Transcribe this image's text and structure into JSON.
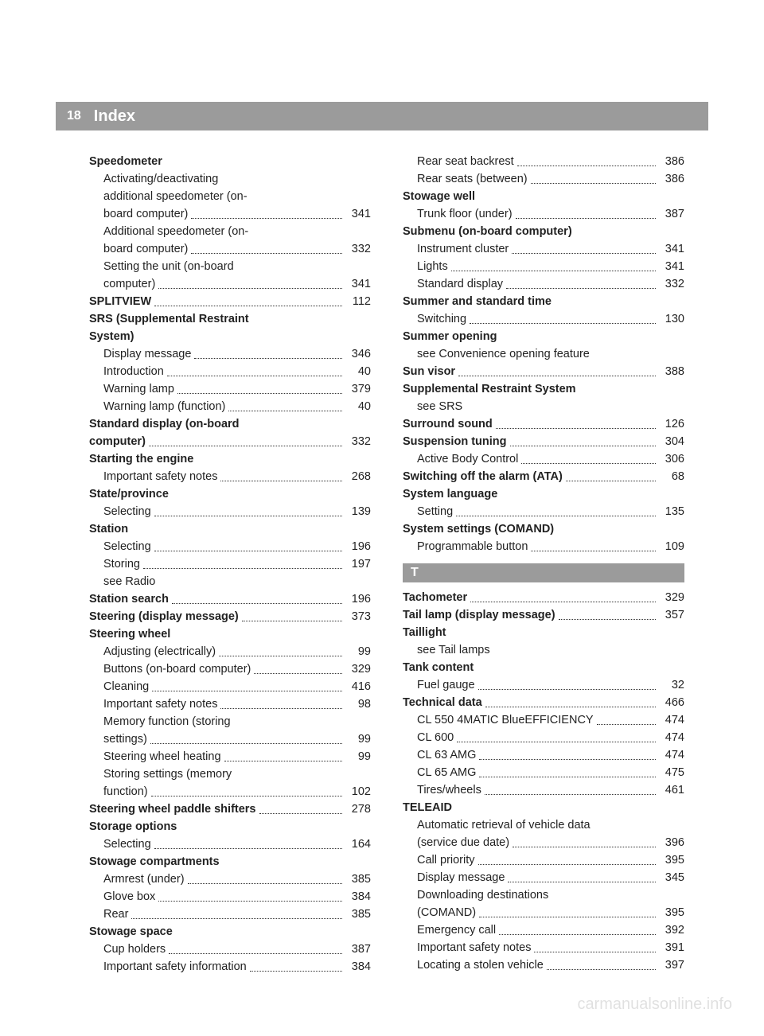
{
  "header": {
    "page_number": "18",
    "title": "Index",
    "bar_bg": "#9b9b9b",
    "text_color": "#ffffff"
  },
  "watermark": "carmanualsonline.info",
  "left_column": [
    {
      "type": "heading",
      "text": "Speedometer"
    },
    {
      "type": "sub-wrap-start",
      "text": "Activating/deactivating"
    },
    {
      "type": "sub-wrap-start",
      "text": "additional speedometer (on-"
    },
    {
      "type": "sub",
      "text": "board computer)",
      "page": "341"
    },
    {
      "type": "sub-wrap-start",
      "text": "Additional speedometer (on-"
    },
    {
      "type": "sub",
      "text": "board computer)",
      "page": "332"
    },
    {
      "type": "sub-wrap-start",
      "text": "Setting the unit (on-board"
    },
    {
      "type": "sub",
      "text": "computer)",
      "page": "341"
    },
    {
      "type": "entry-bold",
      "text": "SPLITVIEW",
      "page": "112"
    },
    {
      "type": "heading",
      "text": "SRS (Supplemental Restraint"
    },
    {
      "type": "heading",
      "text": "System)"
    },
    {
      "type": "sub",
      "text": "Display message",
      "page": "346"
    },
    {
      "type": "sub",
      "text": "Introduction",
      "page": "40"
    },
    {
      "type": "sub",
      "text": "Warning lamp",
      "page": "379"
    },
    {
      "type": "sub",
      "text": "Warning lamp (function)",
      "page": "40"
    },
    {
      "type": "heading",
      "text": "Standard display (on-board"
    },
    {
      "type": "entry-bold",
      "text": "computer)",
      "page": "332"
    },
    {
      "type": "heading",
      "text": "Starting the engine"
    },
    {
      "type": "sub",
      "text": "Important safety notes",
      "page": "268"
    },
    {
      "type": "heading",
      "text": "State/province"
    },
    {
      "type": "sub",
      "text": "Selecting",
      "page": "139"
    },
    {
      "type": "heading",
      "text": "Station"
    },
    {
      "type": "sub",
      "text": "Selecting",
      "page": "196"
    },
    {
      "type": "sub",
      "text": "Storing",
      "page": "197"
    },
    {
      "type": "see",
      "text": "see Radio"
    },
    {
      "type": "entry-bold",
      "text": "Station search",
      "page": "196"
    },
    {
      "type": "entry-bold",
      "text": "Steering (display message)",
      "page": "373"
    },
    {
      "type": "heading",
      "text": "Steering wheel"
    },
    {
      "type": "sub",
      "text": "Adjusting (electrically)",
      "page": "99"
    },
    {
      "type": "sub",
      "text": "Buttons (on-board computer)",
      "page": "329"
    },
    {
      "type": "sub",
      "text": "Cleaning",
      "page": "416"
    },
    {
      "type": "sub",
      "text": "Important safety notes",
      "page": "98"
    },
    {
      "type": "sub-wrap-start",
      "text": "Memory function (storing"
    },
    {
      "type": "sub",
      "text": "settings)",
      "page": "99"
    },
    {
      "type": "sub",
      "text": "Steering wheel heating",
      "page": "99"
    },
    {
      "type": "sub-wrap-start",
      "text": "Storing settings (memory"
    },
    {
      "type": "sub",
      "text": "function)",
      "page": "102"
    },
    {
      "type": "entry-bold",
      "text": "Steering wheel paddle shifters",
      "page": "278"
    },
    {
      "type": "heading",
      "text": "Storage options"
    },
    {
      "type": "sub",
      "text": "Selecting",
      "page": "164"
    },
    {
      "type": "heading",
      "text": "Stowage compartments"
    },
    {
      "type": "sub",
      "text": "Armrest (under)",
      "page": "385"
    },
    {
      "type": "sub",
      "text": "Glove box",
      "page": "384"
    },
    {
      "type": "sub",
      "text": "Rear",
      "page": "385"
    },
    {
      "type": "heading",
      "text": "Stowage space"
    },
    {
      "type": "sub",
      "text": "Cup holders",
      "page": "387"
    },
    {
      "type": "sub",
      "text": "Important safety information",
      "page": "384"
    }
  ],
  "right_column": [
    {
      "type": "sub",
      "text": "Rear seat backrest",
      "page": "386"
    },
    {
      "type": "sub",
      "text": "Rear seats (between)",
      "page": "386"
    },
    {
      "type": "heading",
      "text": "Stowage well"
    },
    {
      "type": "sub",
      "text": "Trunk floor (under)",
      "page": "387"
    },
    {
      "type": "heading",
      "text": "Submenu (on-board computer)"
    },
    {
      "type": "sub",
      "text": "Instrument cluster",
      "page": "341"
    },
    {
      "type": "sub",
      "text": "Lights",
      "page": "341"
    },
    {
      "type": "sub",
      "text": "Standard display",
      "page": "332"
    },
    {
      "type": "heading",
      "text": "Summer and standard time"
    },
    {
      "type": "sub",
      "text": "Switching",
      "page": "130"
    },
    {
      "type": "heading",
      "text": "Summer opening"
    },
    {
      "type": "see",
      "text": "see Convenience opening feature"
    },
    {
      "type": "entry-bold",
      "text": "Sun visor",
      "page": "388"
    },
    {
      "type": "heading",
      "text": "Supplemental Restraint System"
    },
    {
      "type": "see",
      "text": "see SRS"
    },
    {
      "type": "entry-bold",
      "text": "Surround sound",
      "page": "126"
    },
    {
      "type": "entry-bold",
      "text": "Suspension tuning",
      "page": "304"
    },
    {
      "type": "sub",
      "text": "Active Body Control",
      "page": "306"
    },
    {
      "type": "entry-bold",
      "text": "Switching off the alarm (ATA)",
      "page": "68"
    },
    {
      "type": "heading",
      "text": "System language"
    },
    {
      "type": "sub",
      "text": "Setting",
      "page": "135"
    },
    {
      "type": "heading",
      "text": "System settings (COMAND)"
    },
    {
      "type": "sub",
      "text": "Programmable button",
      "page": "109"
    },
    {
      "type": "letter",
      "text": "T"
    },
    {
      "type": "entry-bold",
      "text": "Tachometer",
      "page": "329"
    },
    {
      "type": "entry-bold",
      "text": "Tail lamp (display message)",
      "page": "357"
    },
    {
      "type": "heading",
      "text": "Taillight"
    },
    {
      "type": "see",
      "text": "see Tail lamps"
    },
    {
      "type": "heading",
      "text": "Tank content"
    },
    {
      "type": "sub",
      "text": "Fuel gauge",
      "page": "32"
    },
    {
      "type": "entry-bold",
      "text": "Technical data",
      "page": "466"
    },
    {
      "type": "sub",
      "text": "CL 550 4MATIC BlueEFFICIENCY",
      "page": "474"
    },
    {
      "type": "sub",
      "text": "CL 600",
      "page": "474"
    },
    {
      "type": "sub",
      "text": "CL 63 AMG",
      "page": "474"
    },
    {
      "type": "sub",
      "text": "CL 65 AMG",
      "page": "475"
    },
    {
      "type": "sub",
      "text": "Tires/wheels",
      "page": "461"
    },
    {
      "type": "heading",
      "text": "TELEAID"
    },
    {
      "type": "sub-wrap-start",
      "text": "Automatic retrieval of vehicle data"
    },
    {
      "type": "sub",
      "text": "(service due date)",
      "page": "396"
    },
    {
      "type": "sub",
      "text": "Call priority",
      "page": "395"
    },
    {
      "type": "sub",
      "text": "Display message",
      "page": "345"
    },
    {
      "type": "sub-wrap-start",
      "text": "Downloading destinations"
    },
    {
      "type": "sub",
      "text": "(COMAND)",
      "page": "395"
    },
    {
      "type": "sub",
      "text": "Emergency call",
      "page": "392"
    },
    {
      "type": "sub",
      "text": "Important safety notes",
      "page": "391"
    },
    {
      "type": "sub",
      "text": "Locating a stolen vehicle",
      "page": "397"
    }
  ]
}
